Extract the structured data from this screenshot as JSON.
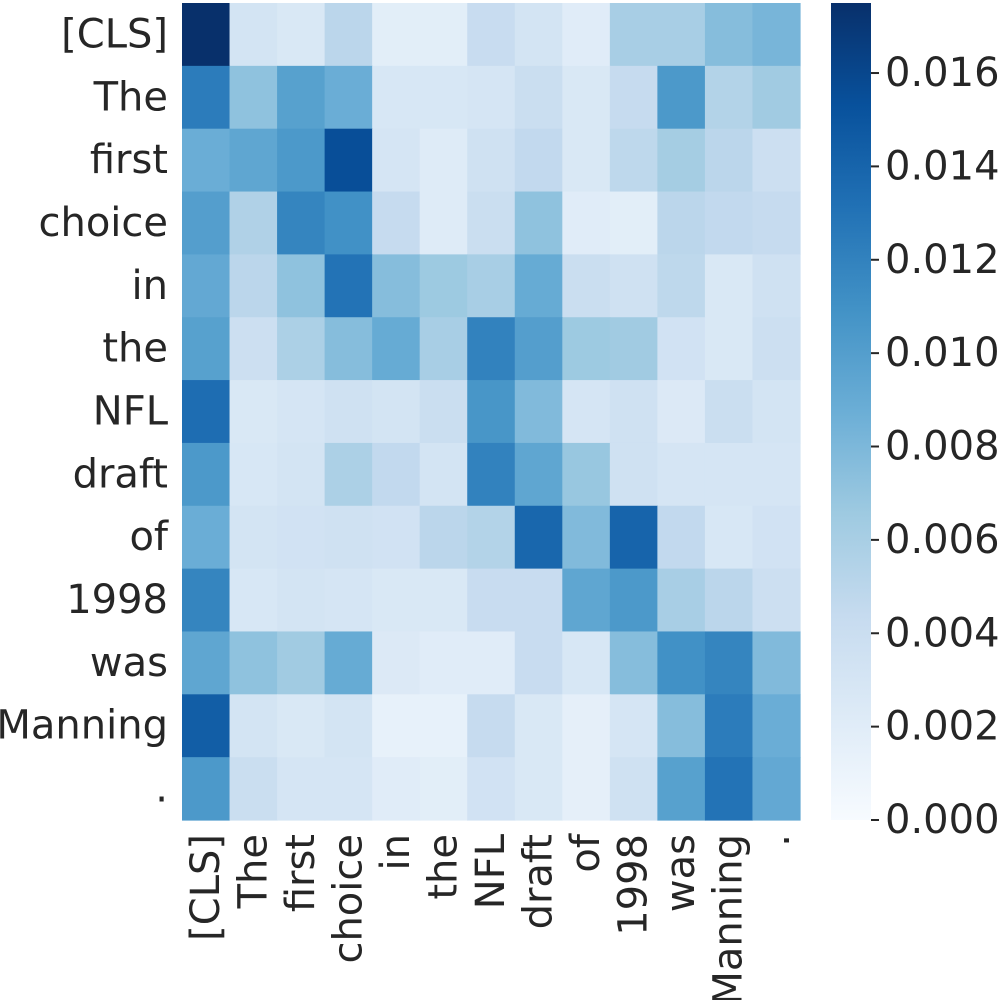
{
  "chart_data": {
    "type": "heatmap",
    "title": "",
    "xlabel": "",
    "ylabel": "",
    "x_labels": [
      "[CLS]",
      "The",
      "first",
      "choice",
      "in",
      "the",
      "NFL",
      "draft",
      "of",
      "1998",
      "was",
      "Manning",
      "."
    ],
    "y_labels": [
      "[CLS]",
      "The",
      "first",
      "choice",
      "in",
      "the",
      "NFL",
      "draft",
      "of",
      "1998",
      "was",
      "Manning",
      "."
    ],
    "values": [
      [
        0.0175,
        0.0032,
        0.0026,
        0.005,
        0.0018,
        0.0018,
        0.0042,
        0.0032,
        0.002,
        0.006,
        0.006,
        0.0076,
        0.0082
      ],
      [
        0.0124,
        0.0072,
        0.0098,
        0.0088,
        0.0028,
        0.0028,
        0.003,
        0.004,
        0.0026,
        0.0044,
        0.0104,
        0.0054,
        0.0064
      ],
      [
        0.0088,
        0.0094,
        0.0104,
        0.0155,
        0.003,
        0.0022,
        0.0036,
        0.0046,
        0.0026,
        0.0048,
        0.0062,
        0.005,
        0.0038
      ],
      [
        0.01,
        0.0056,
        0.0118,
        0.011,
        0.0044,
        0.0022,
        0.004,
        0.0072,
        0.002,
        0.0018,
        0.005,
        0.0046,
        0.0044
      ],
      [
        0.0092,
        0.005,
        0.0072,
        0.013,
        0.0076,
        0.0066,
        0.006,
        0.009,
        0.004,
        0.0036,
        0.0048,
        0.0026,
        0.0036
      ],
      [
        0.0098,
        0.0038,
        0.0058,
        0.0076,
        0.009,
        0.006,
        0.012,
        0.01,
        0.0066,
        0.0064,
        0.0034,
        0.0026,
        0.0038
      ],
      [
        0.0134,
        0.0026,
        0.003,
        0.0036,
        0.0032,
        0.004,
        0.0106,
        0.0078,
        0.003,
        0.0036,
        0.0024,
        0.004,
        0.0032
      ],
      [
        0.0104,
        0.0028,
        0.0032,
        0.0058,
        0.0046,
        0.0032,
        0.012,
        0.0094,
        0.0068,
        0.0036,
        0.003,
        0.003,
        0.003
      ],
      [
        0.0088,
        0.0032,
        0.0034,
        0.0036,
        0.0034,
        0.005,
        0.0054,
        0.0138,
        0.0078,
        0.014,
        0.0046,
        0.0028,
        0.0034
      ],
      [
        0.0118,
        0.0028,
        0.0032,
        0.003,
        0.0026,
        0.0026,
        0.0042,
        0.0042,
        0.0094,
        0.0104,
        0.006,
        0.005,
        0.0038
      ],
      [
        0.0094,
        0.0072,
        0.0064,
        0.009,
        0.0024,
        0.002,
        0.002,
        0.0042,
        0.0028,
        0.0076,
        0.011,
        0.0118,
        0.0078
      ],
      [
        0.0144,
        0.0032,
        0.0026,
        0.0032,
        0.0014,
        0.0014,
        0.0044,
        0.0026,
        0.0016,
        0.003,
        0.0076,
        0.0124,
        0.0088
      ],
      [
        0.0104,
        0.004,
        0.003,
        0.003,
        0.002,
        0.0018,
        0.0034,
        0.0026,
        0.0016,
        0.0036,
        0.0098,
        0.013,
        0.0092
      ]
    ],
    "colorbar": {
      "min": 0.0,
      "max": 0.0175,
      "ticks": [
        0.0,
        0.002,
        0.004,
        0.006,
        0.008,
        0.01,
        0.012,
        0.014,
        0.016
      ],
      "tick_labels": [
        "0.000",
        "0.002",
        "0.004",
        "0.006",
        "0.008",
        "0.010",
        "0.012",
        "0.014",
        "0.016"
      ],
      "colormap": "Blues",
      "colors": [
        "#f7fbff",
        "#deebf7",
        "#c6dbef",
        "#9ecae1",
        "#6baed6",
        "#4292c6",
        "#2171b5",
        "#08519c",
        "#08306b"
      ]
    },
    "grid": false,
    "legend": "colorbar right"
  }
}
